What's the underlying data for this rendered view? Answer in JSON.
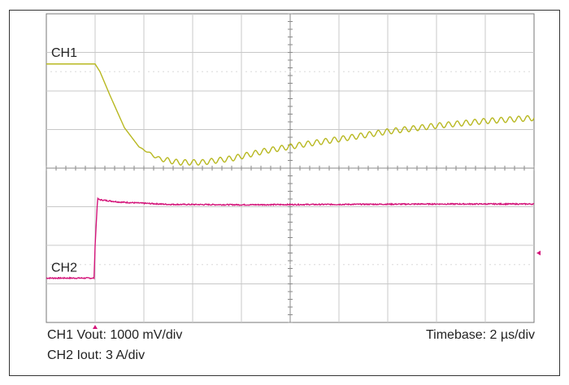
{
  "chart_data": {
    "type": "line",
    "title": "",
    "xlabel": "",
    "ylabel": "",
    "grid": true,
    "divisions": {
      "x": 10,
      "y": 8
    },
    "xlim": [
      0,
      10
    ],
    "ylim": [
      0,
      8
    ],
    "series": [
      {
        "name": "CH1",
        "color": "#b8b820",
        "points": [
          [
            0,
            6.7
          ],
          [
            1.0,
            6.7
          ],
          [
            1.1,
            6.5
          ],
          [
            1.3,
            5.9
          ],
          [
            1.6,
            5.05
          ],
          [
            1.9,
            4.55
          ],
          [
            2.3,
            4.25
          ],
          [
            2.7,
            4.15
          ],
          [
            3.2,
            4.15
          ],
          [
            3.8,
            4.25
          ],
          [
            4.5,
            4.45
          ],
          [
            5.2,
            4.6
          ],
          [
            6.0,
            4.75
          ],
          [
            7.0,
            4.95
          ],
          [
            8.0,
            5.1
          ],
          [
            9.0,
            5.22
          ],
          [
            10.0,
            5.3
          ]
        ],
        "ripple": {
          "amplitude": 0.07,
          "period": 0.18,
          "start": 1.9
        }
      },
      {
        "name": "CH2",
        "color": "#d4157a",
        "points": [
          [
            0,
            1.15
          ],
          [
            0.98,
            1.15
          ],
          [
            1.0,
            2.0
          ],
          [
            1.05,
            3.2
          ],
          [
            1.1,
            3.18
          ],
          [
            1.5,
            3.12
          ],
          [
            2.5,
            3.06
          ],
          [
            4.0,
            3.05
          ],
          [
            6.0,
            3.06
          ],
          [
            8.0,
            3.07
          ],
          [
            10.0,
            3.07
          ]
        ]
      }
    ],
    "labels": {
      "ch1": "CH1",
      "ch2": "CH2"
    },
    "ch1_setting": "CH1 Vout: 1000 mV/div",
    "ch2_setting": "CH2 Iout: 3 A/div",
    "timebase": "Timebase: 2 µs/div",
    "markers": {
      "trigger_color": "#d4157a"
    }
  }
}
